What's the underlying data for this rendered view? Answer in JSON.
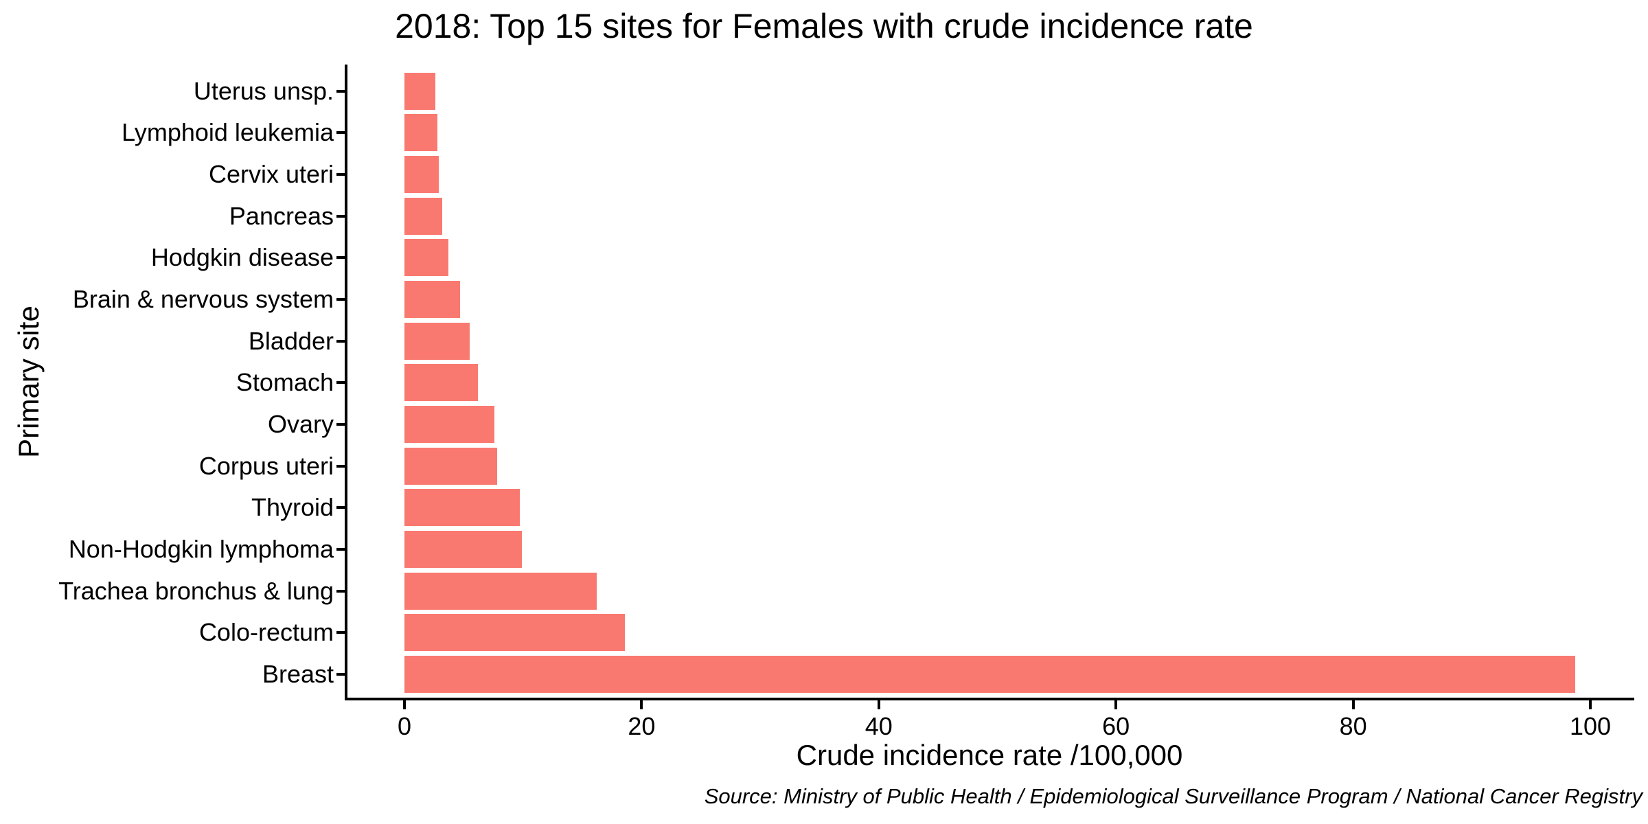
{
  "chart_data": {
    "type": "bar",
    "orientation": "horizontal",
    "title": "2018: Top 15 sites for Females with crude incidence rate",
    "xlabel": "Crude incidence rate /100,000",
    "ylabel": "Primary site",
    "source_note": "Source: Ministry of Public Health / Epidemiological Surveillance Program / National Cancer Registry",
    "categories": [
      "Uterus unsp.",
      "Lymphoid leukemia",
      "Cervix uteri",
      "Pancreas",
      "Hodgkin disease",
      "Brain & nervous system",
      "Bladder",
      "Stomach",
      "Ovary",
      "Corpus uteri",
      "Thyroid",
      "Non-Hodgkin lymphoma",
      "Trachea bronchus & lung",
      "Colo-rectum",
      "Breast"
    ],
    "values": [
      2.6,
      2.8,
      2.9,
      3.2,
      3.7,
      4.7,
      5.5,
      6.2,
      7.6,
      7.8,
      9.7,
      9.9,
      16.2,
      18.6,
      98.7
    ],
    "xticks": [
      0,
      20,
      40,
      60,
      80,
      100
    ],
    "xlim": [
      0,
      100
    ],
    "grid": false,
    "legend": false,
    "bar_color": "#F97970",
    "axis_color": "#000000",
    "text_color": "#000000",
    "background_color": "#FFFFFF"
  }
}
